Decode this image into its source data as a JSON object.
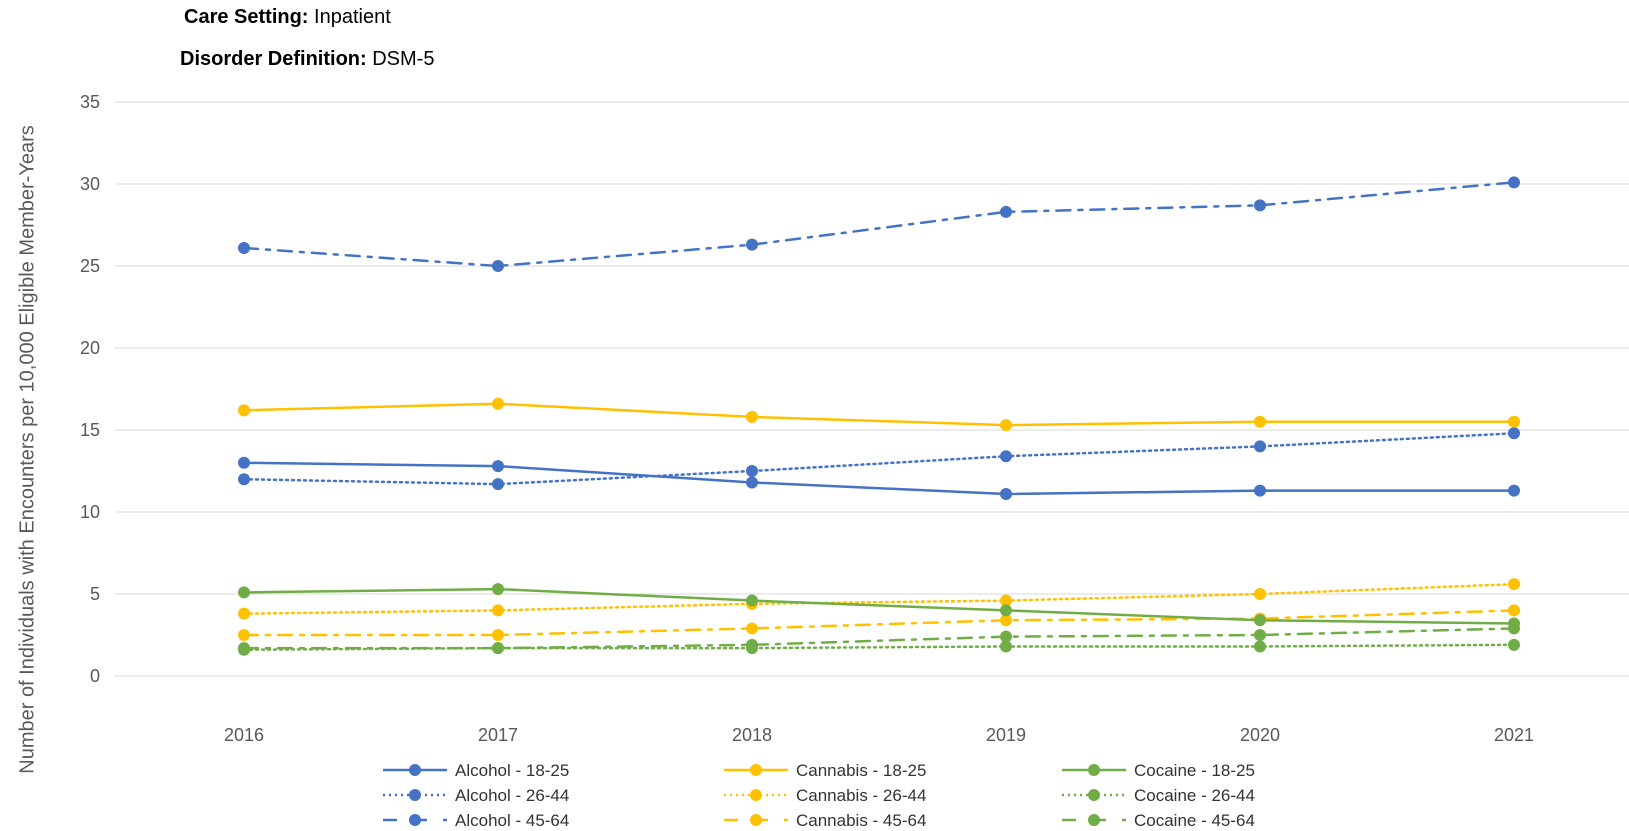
{
  "header": {
    "care_setting_label": "Care Setting:",
    "care_setting_value": "Inpatient",
    "definition_label": "Disorder Definition:",
    "definition_value": "DSM-5"
  },
  "chart_data": {
    "type": "line",
    "ylabel": "Number of Individuals with Encounters per 10,000 Eligible Member-Years",
    "xlabel": "",
    "ylim": [
      0,
      35
    ],
    "yticks": [
      0,
      5,
      10,
      15,
      20,
      25,
      30,
      35
    ],
    "x": [
      "2016",
      "2017",
      "2018",
      "2019",
      "2020",
      "2021"
    ],
    "grid": true,
    "legend_position": "bottom",
    "series": [
      {
        "name": "Alcohol - 18-25",
        "color": "#4472C4",
        "style": "solid",
        "values": [
          13.0,
          12.8,
          11.8,
          11.1,
          11.3,
          11.3
        ]
      },
      {
        "name": "Alcohol - 26-44",
        "color": "#4472C4",
        "style": "dotted",
        "values": [
          12.0,
          11.7,
          12.5,
          13.4,
          14.0,
          14.8
        ]
      },
      {
        "name": "Alcohol - 45-64",
        "color": "#4472C4",
        "style": "dashdot",
        "values": [
          26.1,
          25.0,
          26.3,
          28.3,
          28.7,
          30.1
        ]
      },
      {
        "name": "Cannabis - 18-25",
        "color": "#FFC000",
        "style": "solid",
        "values": [
          16.2,
          16.6,
          15.8,
          15.3,
          15.5,
          15.5
        ]
      },
      {
        "name": "Cannabis - 26-44",
        "color": "#FFC000",
        "style": "dotted",
        "values": [
          3.8,
          4.0,
          4.4,
          4.6,
          5.0,
          5.6
        ]
      },
      {
        "name": "Cannabis - 45-64",
        "color": "#FFC000",
        "style": "dashdot",
        "values": [
          2.5,
          2.5,
          2.9,
          3.4,
          3.5,
          4.0
        ]
      },
      {
        "name": "Cocaine - 18-25",
        "color": "#70AD47",
        "style": "solid",
        "values": [
          5.1,
          5.3,
          4.6,
          4.0,
          3.4,
          3.2
        ]
      },
      {
        "name": "Cocaine - 26-44",
        "color": "#70AD47",
        "style": "dotted",
        "values": [
          1.6,
          1.7,
          1.7,
          1.8,
          1.8,
          1.9
        ]
      },
      {
        "name": "Cocaine - 45-64",
        "color": "#70AD47",
        "style": "dashdot",
        "values": [
          1.7,
          1.7,
          1.9,
          2.4,
          2.5,
          2.9
        ]
      }
    ]
  }
}
